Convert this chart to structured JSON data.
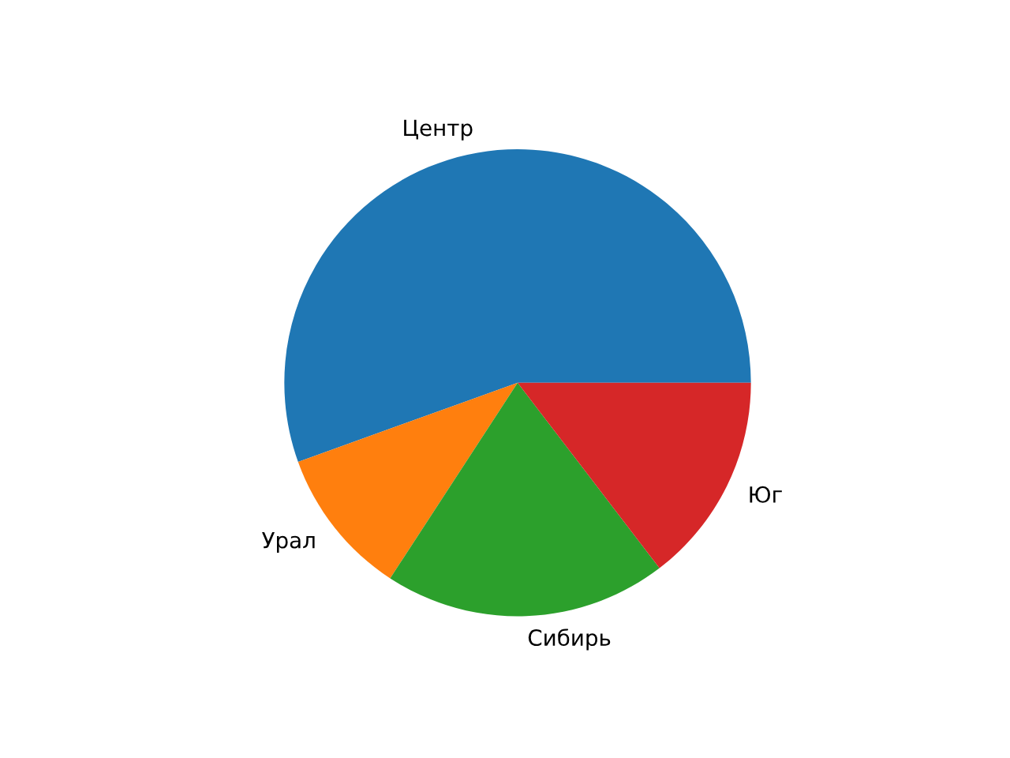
{
  "chart_data": {
    "type": "pie",
    "categories": [
      "Центр",
      "Урал",
      "Сибирь",
      "Юг"
    ],
    "values": [
      55.5,
      10.3,
      19.6,
      14.6
    ],
    "colors": [
      "#1f77b4",
      "#ff7f0e",
      "#2ca02c",
      "#d62728"
    ]
  }
}
